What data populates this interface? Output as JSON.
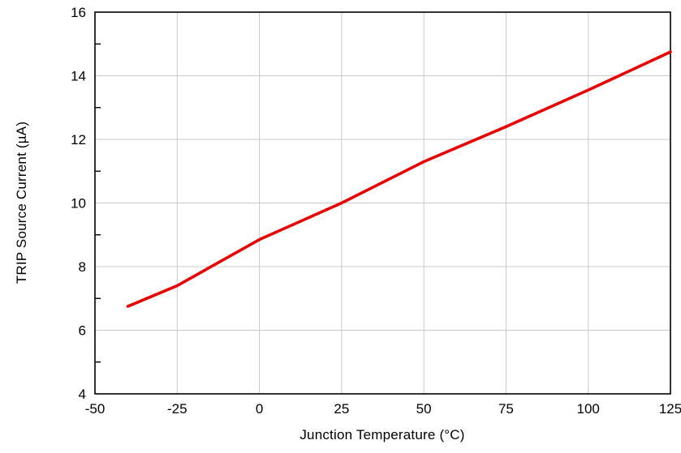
{
  "colors": {
    "background": "#ffffff",
    "axis": "#000000",
    "grid": "#c9c9c9",
    "text": "#000000",
    "line": "#e50000"
  },
  "chart_data": {
    "type": "line",
    "title": "",
    "xlabel": "Junction Temperature (°C)",
    "ylabel": "TRIP Source Current (µA)",
    "xlim": [
      -50,
      125
    ],
    "ylim": [
      4,
      16
    ],
    "x_ticks": [
      -50,
      -25,
      0,
      25,
      50,
      75,
      100,
      125
    ],
    "y_ticks": [
      4,
      6,
      8,
      10,
      12,
      14,
      16
    ],
    "y_minor_ticks": [
      5,
      7,
      9,
      11,
      13,
      15
    ],
    "grid": true,
    "legend_position": "none",
    "series": [
      {
        "name": "TRIP Source Current",
        "color": "#e50000",
        "x": [
          -40,
          -25,
          0,
          25,
          50,
          75,
          100,
          125
        ],
        "y": [
          6.75,
          7.4,
          8.85,
          10.0,
          11.3,
          12.4,
          13.55,
          14.75
        ]
      }
    ]
  }
}
